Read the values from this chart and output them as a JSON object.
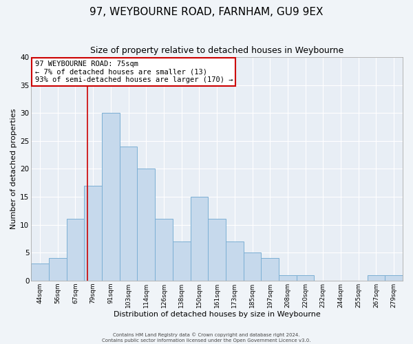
{
  "title": "97, WEYBOURNE ROAD, FARNHAM, GU9 9EX",
  "subtitle": "Size of property relative to detached houses in Weybourne",
  "xlabel": "Distribution of detached houses by size in Weybourne",
  "ylabel": "Number of detached properties",
  "bar_labels": [
    "44sqm",
    "56sqm",
    "67sqm",
    "79sqm",
    "91sqm",
    "103sqm",
    "114sqm",
    "126sqm",
    "138sqm",
    "150sqm",
    "161sqm",
    "173sqm",
    "185sqm",
    "197sqm",
    "208sqm",
    "220sqm",
    "232sqm",
    "244sqm",
    "255sqm",
    "267sqm",
    "279sqm"
  ],
  "bar_values": [
    3,
    4,
    11,
    17,
    30,
    24,
    20,
    11,
    7,
    15,
    11,
    7,
    5,
    4,
    1,
    1,
    0,
    0,
    0,
    1,
    1
  ],
  "bar_color": "#c6d9ec",
  "bar_edge_color": "#7bafd4",
  "ylim": [
    0,
    40
  ],
  "yticks": [
    0,
    5,
    10,
    15,
    20,
    25,
    30,
    35,
    40
  ],
  "red_line_x": 2.67,
  "annotation_text": "97 WEYBOURNE ROAD: 75sqm\n← 7% of detached houses are smaller (13)\n93% of semi-detached houses are larger (170) →",
  "annotation_box_color": "#ffffff",
  "annotation_box_edge_color": "#cc0000",
  "footer_line1": "Contains HM Land Registry data © Crown copyright and database right 2024.",
  "footer_line2": "Contains public sector information licensed under the Open Government Licence v3.0.",
  "bg_color": "#f0f4f8",
  "plot_bg_color": "#e8eef5",
  "grid_color": "#ffffff",
  "title_fontsize": 11,
  "subtitle_fontsize": 9,
  "axis_label_fontsize": 8,
  "annotation_fontsize": 7.5
}
